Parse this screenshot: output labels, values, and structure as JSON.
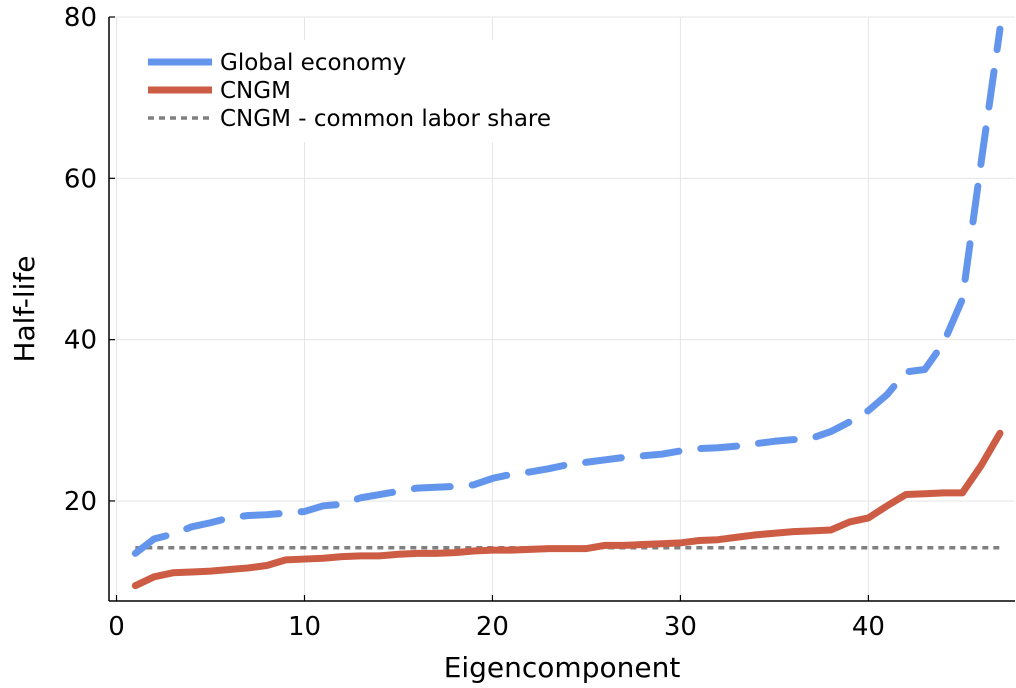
{
  "chart_data": {
    "type": "line",
    "xlabel": "Eigencomponent",
    "ylabel": "Half-life",
    "xlim": [
      -0.4,
      47.8
    ],
    "ylim": [
      7.6,
      80
    ],
    "xticks": [
      0,
      10,
      20,
      30,
      40
    ],
    "yticks": [
      20,
      40,
      60,
      80
    ],
    "grid": true,
    "legend_position": "top-left",
    "x": [
      1,
      2,
      3,
      4,
      5,
      6,
      7,
      8,
      9,
      10,
      11,
      12,
      13,
      14,
      15,
      16,
      17,
      18,
      19,
      20,
      21,
      22,
      23,
      24,
      25,
      26,
      27,
      28,
      29,
      30,
      31,
      32,
      33,
      34,
      35,
      36,
      37,
      38,
      39,
      40,
      41,
      42,
      43,
      44,
      45,
      46,
      47
    ],
    "series": [
      {
        "name": "Global economy",
        "color": "#6495ED",
        "style": "dashed",
        "values": [
          13.5,
          15.3,
          15.9,
          16.8,
          17.3,
          17.9,
          18.2,
          18.3,
          18.5,
          18.7,
          19.4,
          19.6,
          20.4,
          20.8,
          21.2,
          21.6,
          21.7,
          21.8,
          22.0,
          22.8,
          23.3,
          23.6,
          24.0,
          24.5,
          24.8,
          25.1,
          25.4,
          25.6,
          25.8,
          26.2,
          26.5,
          26.6,
          26.8,
          27.1,
          27.4,
          27.6,
          27.8,
          28.6,
          29.8,
          31.2,
          33.2,
          36.0,
          36.3,
          39.6,
          45.0,
          62.0,
          78.5
        ]
      },
      {
        "name": "CNGM",
        "color": "#CD5C45",
        "style": "solid",
        "values": [
          9.5,
          10.6,
          11.1,
          11.2,
          11.3,
          11.5,
          11.7,
          12.0,
          12.7,
          12.8,
          12.9,
          13.1,
          13.2,
          13.2,
          13.4,
          13.5,
          13.5,
          13.6,
          13.8,
          13.9,
          13.9,
          14.0,
          14.1,
          14.1,
          14.1,
          14.5,
          14.5,
          14.6,
          14.7,
          14.8,
          15.1,
          15.2,
          15.5,
          15.8,
          16.0,
          16.2,
          16.3,
          16.4,
          17.4,
          17.9,
          19.4,
          20.8,
          20.9,
          21.0,
          21.0,
          24.4,
          28.4
        ]
      },
      {
        "name": "CNGM - common labor share",
        "color": "#808080",
        "style": "dotted",
        "values": [
          14.2,
          14.2,
          14.2,
          14.2,
          14.2,
          14.2,
          14.2,
          14.2,
          14.2,
          14.2,
          14.2,
          14.2,
          14.2,
          14.2,
          14.2,
          14.2,
          14.2,
          14.2,
          14.2,
          14.2,
          14.2,
          14.2,
          14.2,
          14.2,
          14.2,
          14.2,
          14.2,
          14.2,
          14.2,
          14.2,
          14.2,
          14.2,
          14.2,
          14.2,
          14.2,
          14.2,
          14.2,
          14.2,
          14.2,
          14.2,
          14.2,
          14.2,
          14.2,
          14.2,
          14.2,
          14.2,
          14.2
        ]
      }
    ]
  }
}
